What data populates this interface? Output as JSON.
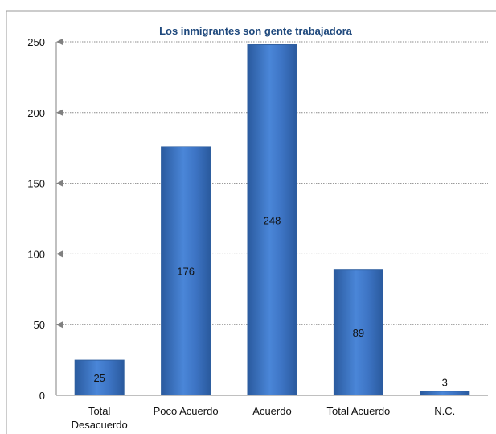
{
  "chart_data": {
    "type": "bar",
    "title": "Los inmigrantes son gente trabajadora",
    "categories": [
      [
        "Total",
        "Desacuerdo"
      ],
      [
        "Poco Acuerdo"
      ],
      [
        "Acuerdo"
      ],
      [
        "Total Acuerdo"
      ],
      [
        "N.C."
      ]
    ],
    "values": [
      25,
      176,
      248,
      89,
      3
    ],
    "data_labels": [
      "25",
      "176",
      "248",
      "89",
      "3"
    ],
    "ylim": [
      0,
      250
    ],
    "yticks": [
      0,
      50,
      100,
      150,
      200,
      250
    ],
    "ytick_labels": [
      "0",
      "50",
      "100",
      "150",
      "200",
      "250"
    ],
    "grid": true,
    "colors": {
      "bar": "#3d74c4",
      "bar_light": "#6b9be0",
      "bar_dark": "#2a5a9e",
      "bar_edge": "#2f5f9f",
      "grid": "#8c8c8c",
      "title": "#1f497d"
    }
  }
}
